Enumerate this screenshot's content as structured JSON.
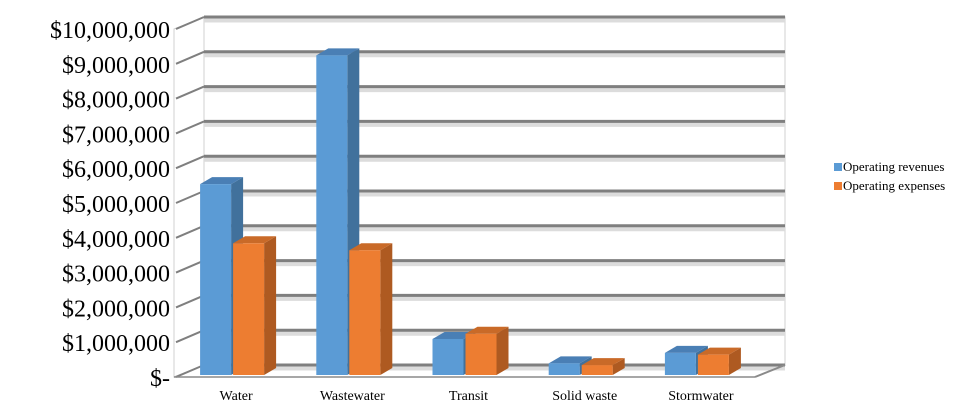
{
  "chart_data": {
    "type": "bar",
    "title": "",
    "xlabel": "",
    "ylabel": "",
    "categories": [
      "Water",
      "Wastewater",
      "Transit",
      "Solid waste",
      "Stormwater"
    ],
    "series": [
      {
        "name": "Operating revenues",
        "values": [
          5600000,
          9300000,
          1150000,
          450000,
          750000
        ]
      },
      {
        "name": "Operating expenses",
        "values": [
          3900000,
          3700000,
          1300000,
          400000,
          700000
        ]
      }
    ],
    "ylim": [
      0,
      10000000
    ],
    "yticks": [
      0,
      1000000,
      2000000,
      3000000,
      4000000,
      5000000,
      6000000,
      7000000,
      8000000,
      9000000,
      10000000
    ],
    "ytick_labels": [
      "$-",
      "$1,000,000",
      "$2,000,000",
      "$3,000,000",
      "$4,000,000",
      "$5,000,000",
      "$6,000,000",
      "$7,000,000",
      "$8,000,000",
      "$9,000,000",
      "$10,000,000"
    ],
    "grid": true,
    "legend_position": "right",
    "style": "3d-clustered-column",
    "colors": {
      "Operating revenues": "#5B9BD5",
      "Operating expenses": "#ED7D31",
      "grid": "#808080",
      "wall": "#D9D9D9"
    }
  }
}
